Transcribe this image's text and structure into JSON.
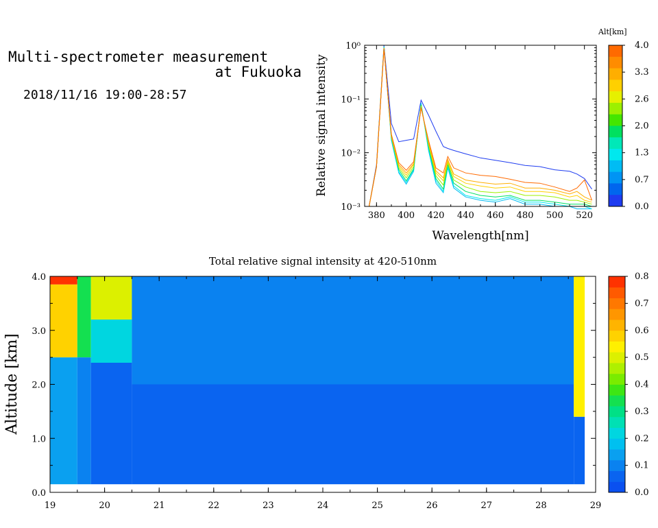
{
  "header": {
    "title_line1": "Multi-spectrometer measurement",
    "title_line2": "at Fukuoka",
    "datetime": "2018/11/16 19:00-28:57"
  },
  "chart_data": [
    {
      "type": "line",
      "title": "",
      "xlabel": "Wavelength[nm]",
      "ylabel": "Relative signal intensity",
      "xlim": [
        372,
        528
      ],
      "ylim": [
        0.001,
        1
      ],
      "yscale": "log",
      "xticks": [
        "380",
        "400",
        "420",
        "440",
        "460",
        "480",
        "500",
        "520"
      ],
      "yticks": [
        "10⁰",
        "10⁻¹",
        "10⁻²",
        "10⁻³"
      ],
      "colorbar": {
        "label": "Alt[km]",
        "ticks": [
          "4.0",
          "3.3",
          "2.6",
          "2.0",
          "1.3",
          "0.7",
          "0.0"
        ],
        "colors": [
          "#ff6a00",
          "#ff8c00",
          "#ffae00",
          "#ffd000",
          "#e6f000",
          "#9cf000",
          "#44e600",
          "#00e060",
          "#00e8b8",
          "#00e8ee",
          "#00bcf4",
          "#0094f4",
          "#0066ee",
          "#1e3cf0"
        ]
      },
      "x": [
        375,
        380,
        385,
        390,
        395,
        400,
        405,
        410,
        415,
        420,
        425,
        428,
        432,
        440,
        450,
        460,
        470,
        480,
        490,
        500,
        510,
        515,
        520,
        525
      ],
      "series": [
        {
          "alt": 0.0,
          "color": "#1e3cf0",
          "values": [
            0.001,
            0.006,
            1.0,
            0.035,
            0.016,
            0.017,
            0.018,
            0.095,
            0.05,
            0.025,
            0.013,
            0.012,
            0.011,
            0.0095,
            0.008,
            0.0072,
            0.0065,
            0.0058,
            0.0055,
            0.0048,
            0.0045,
            0.004,
            0.0033,
            0.0021
          ]
        },
        {
          "alt": 0.3,
          "color": "#00bcf4",
          "values": [
            0.001,
            0.0055,
            0.95,
            0.017,
            0.0042,
            0.0026,
            0.0045,
            0.085,
            0.011,
            0.0027,
            0.0018,
            0.0052,
            0.0022,
            0.0015,
            0.0013,
            0.0012,
            0.0014,
            0.0011,
            0.0011,
            0.001,
            0.001,
            0.0009,
            0.0009,
            0.0009
          ]
        },
        {
          "alt": 0.7,
          "color": "#00e8ee",
          "values": [
            0.001,
            0.0055,
            0.93,
            0.018,
            0.0044,
            0.0028,
            0.0048,
            0.08,
            0.012,
            0.003,
            0.0019,
            0.0055,
            0.0024,
            0.0016,
            0.0014,
            0.0013,
            0.0015,
            0.0012,
            0.0012,
            0.0011,
            0.001,
            0.001,
            0.001,
            0.0009
          ]
        },
        {
          "alt": 1.3,
          "color": "#00e060",
          "values": [
            0.001,
            0.0055,
            0.9,
            0.019,
            0.0048,
            0.003,
            0.005,
            0.078,
            0.013,
            0.0033,
            0.0021,
            0.006,
            0.0027,
            0.0019,
            0.0016,
            0.0015,
            0.0016,
            0.0013,
            0.0013,
            0.0012,
            0.0011,
            0.0011,
            0.0011,
            0.001
          ]
        },
        {
          "alt": 2.0,
          "color": "#9cf000",
          "values": [
            0.001,
            0.0055,
            0.9,
            0.02,
            0.0052,
            0.0034,
            0.0055,
            0.075,
            0.014,
            0.0037,
            0.0025,
            0.0065,
            0.0031,
            0.0023,
            0.0019,
            0.0018,
            0.0019,
            0.0016,
            0.0016,
            0.0015,
            0.0013,
            0.0013,
            0.0012,
            0.0011
          ]
        },
        {
          "alt": 2.6,
          "color": "#ffd000",
          "values": [
            0.001,
            0.0055,
            0.88,
            0.02,
            0.0056,
            0.0038,
            0.006,
            0.072,
            0.015,
            0.0042,
            0.003,
            0.007,
            0.0036,
            0.0027,
            0.0024,
            0.0022,
            0.0023,
            0.0019,
            0.0019,
            0.0018,
            0.0015,
            0.0016,
            0.0013,
            0.0012
          ]
        },
        {
          "alt": 3.3,
          "color": "#ffae00",
          "values": [
            0.001,
            0.0055,
            0.88,
            0.021,
            0.006,
            0.0042,
            0.0063,
            0.07,
            0.016,
            0.0046,
            0.0034,
            0.0075,
            0.004,
            0.0031,
            0.0028,
            0.0026,
            0.0027,
            0.0022,
            0.0022,
            0.002,
            0.0017,
            0.0019,
            0.0015,
            0.0013
          ]
        },
        {
          "alt": 4.0,
          "color": "#ff6a00",
          "values": [
            0.001,
            0.0055,
            0.85,
            0.022,
            0.0065,
            0.0047,
            0.0068,
            0.068,
            0.017,
            0.0052,
            0.0042,
            0.0085,
            0.0052,
            0.0042,
            0.0038,
            0.0036,
            0.0032,
            0.0028,
            0.0027,
            0.0023,
            0.0019,
            0.0022,
            0.0031,
            0.0013
          ]
        }
      ]
    },
    {
      "type": "heatmap",
      "title": "Total relative signal intensity at 420-510nm",
      "xlabel": "",
      "ylabel": "Altitude [km]",
      "xlim": [
        19,
        29
      ],
      "ylim": [
        0,
        4
      ],
      "xticks": [
        "19",
        "20",
        "21",
        "22",
        "23",
        "24",
        "25",
        "26",
        "27",
        "28",
        "29"
      ],
      "yticks": [
        "0.0",
        "1.0",
        "2.0",
        "3.0",
        "4.0"
      ],
      "colorbar": {
        "ticks": [
          "0.0",
          "0.1",
          "0.2",
          "0.3",
          "0.4",
          "0.5",
          "0.6",
          "0.7",
          "0.8"
        ],
        "colors": [
          "#0a50f0",
          "#0a64f0",
          "#0a82f0",
          "#0aa0f0",
          "#00c0f0",
          "#00d6e0",
          "#00e0b4",
          "#00e086",
          "#14e050",
          "#3ee614",
          "#7aec00",
          "#aef000",
          "#dcf000",
          "#fff000",
          "#ffd200",
          "#ffb400",
          "#ff9600",
          "#ff7800",
          "#ff5a00",
          "#ff3200"
        ]
      },
      "columns": [
        {
          "x": [
            19.0,
            19.5
          ],
          "bands": [
            {
              "y": [
                0.15,
                2.5
              ],
              "v": 0.13
            },
            {
              "y": [
                2.5,
                3.85
              ],
              "v": 0.6
            },
            {
              "y": [
                3.85,
                4.0
              ],
              "v": 0.8
            }
          ]
        },
        {
          "x": [
            19.5,
            19.75
          ],
          "bands": [
            {
              "y": [
                0.15,
                2.5
              ],
              "v": 0.11
            },
            {
              "y": [
                2.5,
                4.0
              ],
              "v": 0.35
            }
          ]
        },
        {
          "x": [
            19.75,
            20.5
          ],
          "bands": [
            {
              "y": [
                0.15,
                2.4
              ],
              "v": 0.06
            },
            {
              "y": [
                2.4,
                3.2
              ],
              "v": 0.22
            },
            {
              "y": [
                3.2,
                4.0
              ],
              "v": 0.5
            }
          ]
        },
        {
          "x": [
            20.5,
            28.6
          ],
          "bands": [
            {
              "y": [
                0.15,
                2.0
              ],
              "v": 0.05
            },
            {
              "y": [
                2.0,
                4.0
              ],
              "v": 0.09
            }
          ]
        },
        {
          "x": [
            28.6,
            28.8
          ],
          "bands": [
            {
              "y": [
                0.15,
                1.4
              ],
              "v": 0.06
            },
            {
              "y": [
                1.4,
                4.0
              ],
              "v": 0.55
            }
          ]
        }
      ]
    }
  ]
}
